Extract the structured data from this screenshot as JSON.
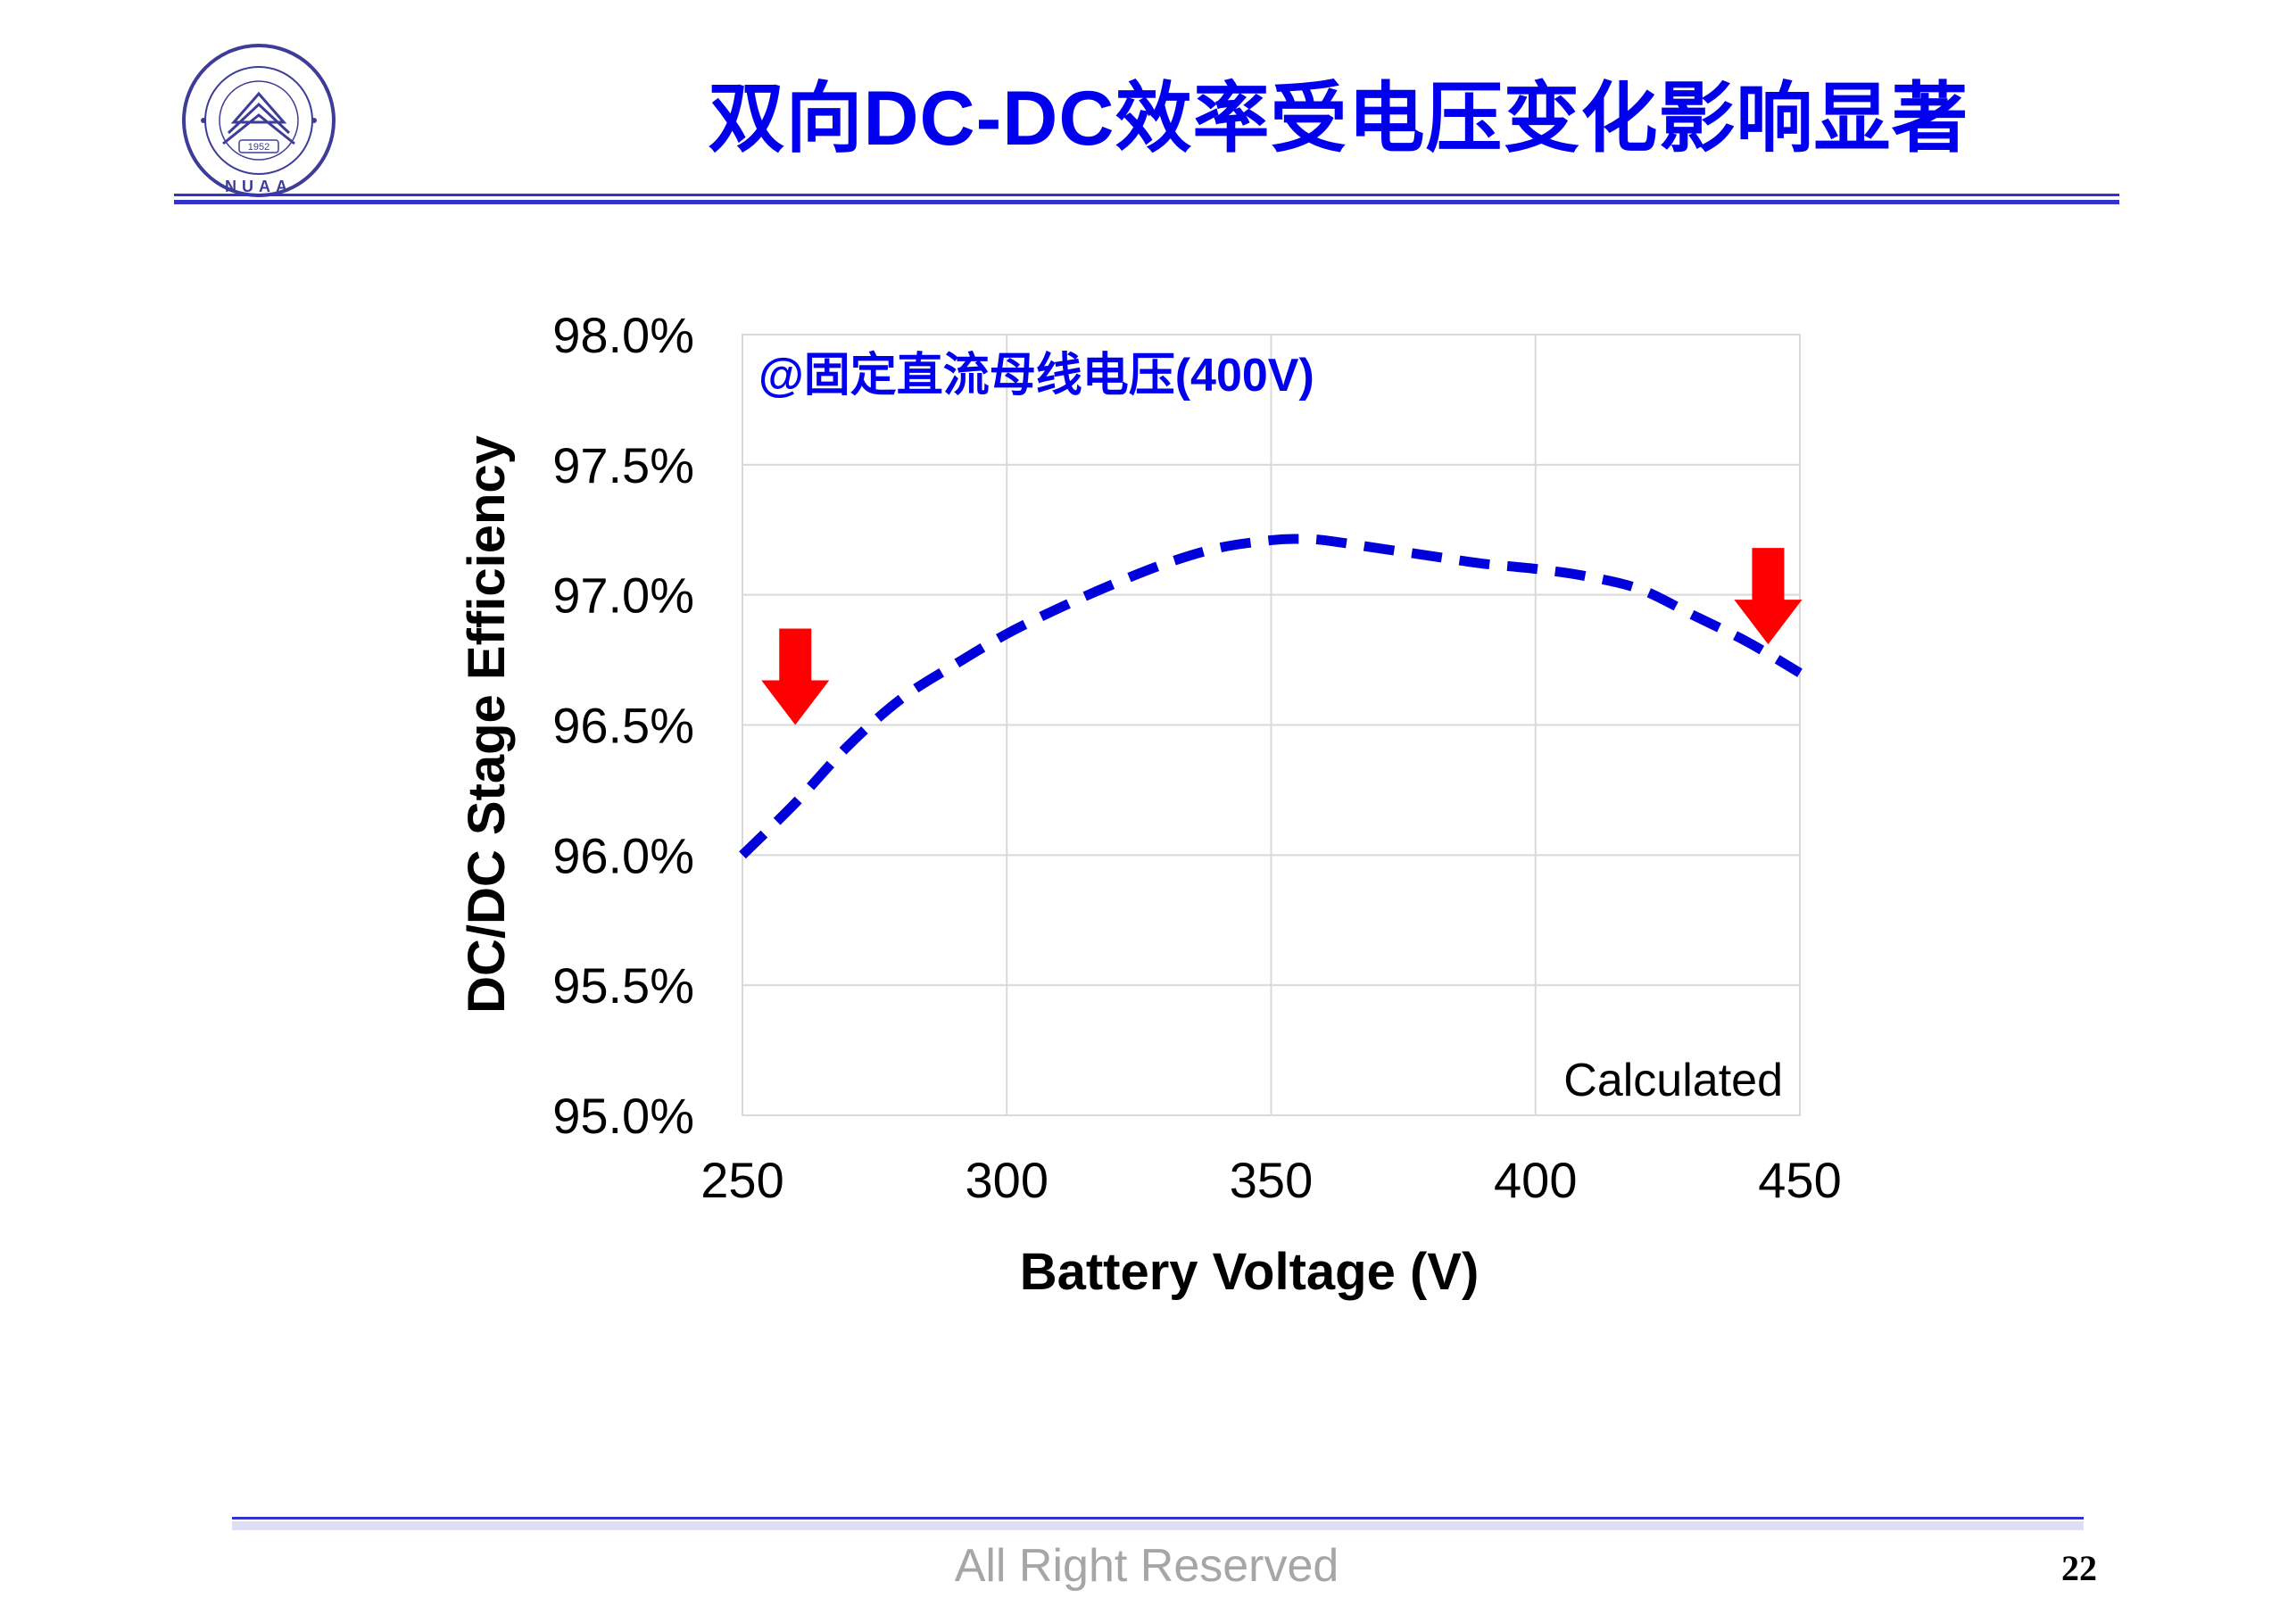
{
  "slide": {
    "title": "双向DC-DC效率受电压变化影响显著",
    "footer": "All Right Reserved",
    "page_number": "22",
    "logo_text": "NUAA",
    "logo_year": "1952",
    "colors": {
      "title": "#0000ee",
      "rule": "#3333cc",
      "footer": "#a6a6a6"
    }
  },
  "chart_data": {
    "type": "line",
    "annotation": "@固定直流母线电压(400V)",
    "note": "Calculated",
    "xlabel": "Battery Voltage (V)",
    "ylabel": "DC/DC Stage Efficiency",
    "xlim": [
      250,
      450
    ],
    "ylim": [
      95.0,
      98.0
    ],
    "x_ticks": [
      250,
      300,
      350,
      400,
      450
    ],
    "y_ticks": [
      95.0,
      95.5,
      96.0,
      96.5,
      97.0,
      97.5,
      98.0
    ],
    "y_tick_labels": [
      "95.0%",
      "95.5%",
      "96.0%",
      "96.5%",
      "97.0%",
      "97.5%",
      "98.0%"
    ],
    "grid": true,
    "series": [
      {
        "line_style": "dashed",
        "color": "#0000dd",
        "x": [
          250,
          260,
          270,
          280,
          290,
          300,
          310,
          320,
          330,
          340,
          350,
          355,
          360,
          370,
          380,
          390,
          400,
          410,
          420,
          430,
          440,
          450
        ],
        "y": [
          96.0,
          96.2,
          96.42,
          96.6,
          96.73,
          96.85,
          96.95,
          97.04,
          97.12,
          97.18,
          97.21,
          97.215,
          97.21,
          97.18,
          97.15,
          97.12,
          97.1,
          97.07,
          97.02,
          96.92,
          96.82,
          96.7
        ]
      }
    ],
    "markers": [
      {
        "name": "left-arrow",
        "x": 260,
        "y": 96.5,
        "color": "#ff0000",
        "direction": "down"
      },
      {
        "name": "right-arrow",
        "x": 444,
        "y": 96.81,
        "color": "#ff0000",
        "direction": "down"
      }
    ]
  }
}
